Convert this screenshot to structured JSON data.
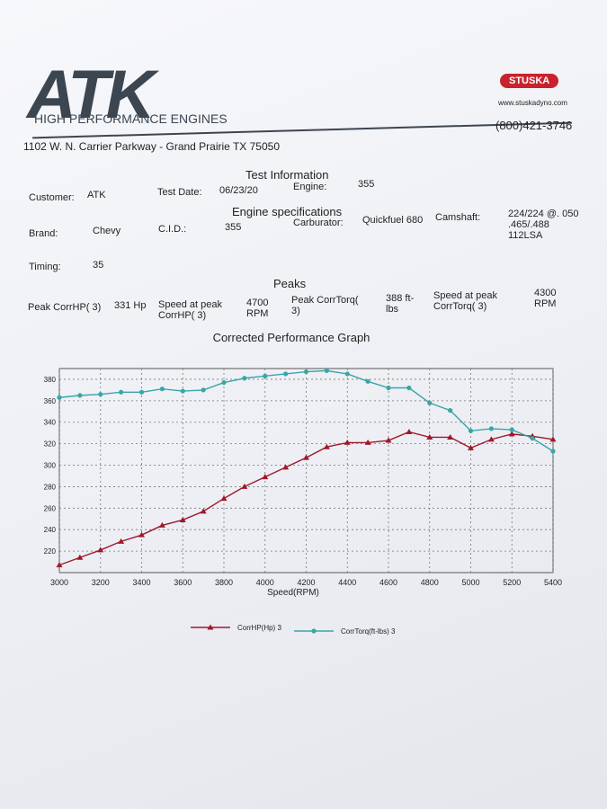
{
  "header": {
    "logo": "ATK",
    "tagline": "HIGH PERFORMANCE ENGINES",
    "brand_badge": "STUSKA",
    "website": "www.stuskadyno.com",
    "phone": "(800)421-3746",
    "address": "1102 W. N. Carrier Parkway  -  Grand Prairie TX 75050"
  },
  "test_information": {
    "title": "Test Information",
    "customer_label": "Customer:",
    "customer": "ATK",
    "date_label": "Test Date:",
    "date": "06/23/20",
    "engine_label": "Engine:",
    "engine": "355"
  },
  "engine_specifications": {
    "title": "Engine specifications",
    "brand_label": "Brand:",
    "brand": "Chevy",
    "cid_label": "C.I.D.:",
    "cid": "355",
    "carb_label": "Carburator:",
    "carb": "Quickfuel 680",
    "cam_label": "Camshaft:",
    "cam": "224/224 @. 050 .465/.488 112LSA",
    "timing_label": "Timing:",
    "timing": "35"
  },
  "peaks": {
    "title": "Peaks",
    "hp_label": "Peak CorrHP( 3)",
    "hp": "331 Hp",
    "hp_speed_label": "Speed at peak CorrHP( 3)",
    "hp_speed": "4700 RPM",
    "tq_label": "Peak CorrTorq( 3)",
    "tq": "388 ft-lbs",
    "tq_speed_label": "Speed at peak CorrTorq( 3)",
    "tq_speed": "4300 RPM"
  },
  "chart_data": {
    "type": "line",
    "title": "Corrected Performance Graph",
    "x_label": "Speed(RPM)",
    "x": [
      3000,
      3100,
      3200,
      3300,
      3400,
      3500,
      3600,
      3700,
      3800,
      3900,
      4000,
      4100,
      4200,
      4300,
      4400,
      4500,
      4600,
      4700,
      4800,
      4900,
      5000,
      5100,
      5200,
      5300,
      5400
    ],
    "series": [
      {
        "name": "CorrHP(Hp) 3",
        "color": "#a0182a",
        "marker": "triangle",
        "values": [
          207,
          214,
          221,
          229,
          235,
          244,
          249,
          257,
          269,
          280,
          289,
          298,
          307,
          317,
          321,
          321,
          323,
          331,
          326,
          326,
          316,
          324,
          329,
          327,
          324
        ]
      },
      {
        "name": "CorrTorq(ft-lbs) 3",
        "color": "#3aa6a6",
        "marker": "circle",
        "values": [
          363,
          365,
          366,
          368,
          368,
          371,
          369,
          370,
          377,
          381,
          383,
          385,
          387,
          388,
          385,
          378,
          372,
          372,
          358,
          351,
          332,
          334,
          333,
          325,
          313
        ]
      }
    ],
    "xlim": [
      3000,
      5400
    ],
    "xticks": [
      3000,
      3200,
      3400,
      3600,
      3800,
      4000,
      4200,
      4400,
      4600,
      4800,
      5000,
      5200,
      5400
    ],
    "ylim": [
      200,
      390
    ],
    "yticks": [
      220,
      240,
      260,
      280,
      300,
      320,
      340,
      360,
      380
    ],
    "grid": true
  }
}
